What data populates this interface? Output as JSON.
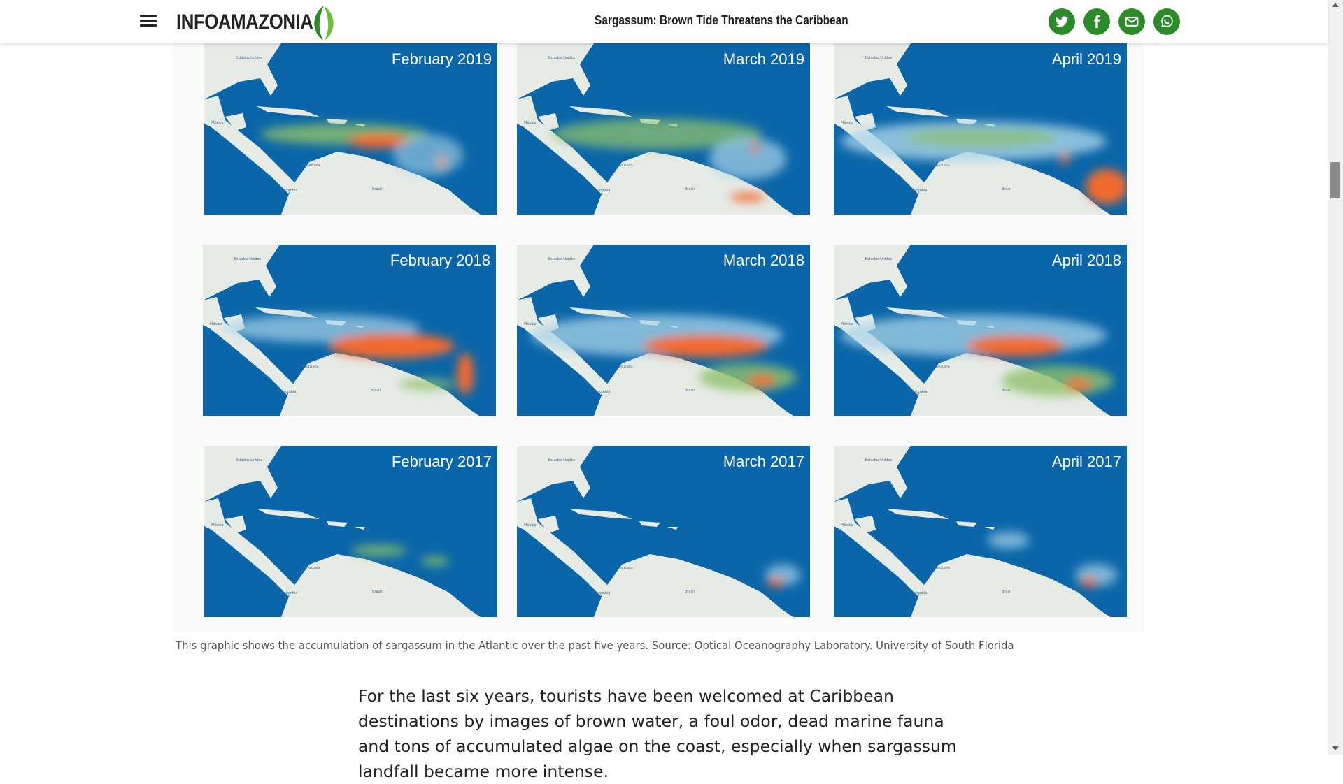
{
  "header": {
    "brand": "INFOAMAZONIA",
    "title": "Sargassum: Brown Tide Threatens the Caribbean",
    "share_icons": [
      "twitter-icon",
      "facebook-icon",
      "email-icon",
      "whatsapp-icon"
    ],
    "accent_color": "#2d8a2a"
  },
  "gallery": {
    "maps": [
      {
        "label": "February 2019"
      },
      {
        "label": "March 2019"
      },
      {
        "label": "April 2019"
      },
      {
        "label": "February 2018"
      },
      {
        "label": "March 2018"
      },
      {
        "label": "April 2018"
      },
      {
        "label": "February 2017"
      },
      {
        "label": "March 2017"
      },
      {
        "label": "April 2017"
      }
    ],
    "ocean_color": "#0a66a8",
    "land_color": "#e6ebe6",
    "bloom_colors": [
      "#a9d4e8",
      "#8ec06c",
      "#f26a2e"
    ]
  },
  "caption": "This graphic shows the accumulation of sargassum in the Atlantic over the past five years. Source: Optical Oceanography Laboratory. University of South Florida",
  "article": {
    "paragraph": "For the last six years, tourists have been welcomed at Caribbean destinations by images of brown water, a foul odor, dead marine fauna and tons of accumulated algae on the coast, especially when sargassum landfall became more intense."
  }
}
